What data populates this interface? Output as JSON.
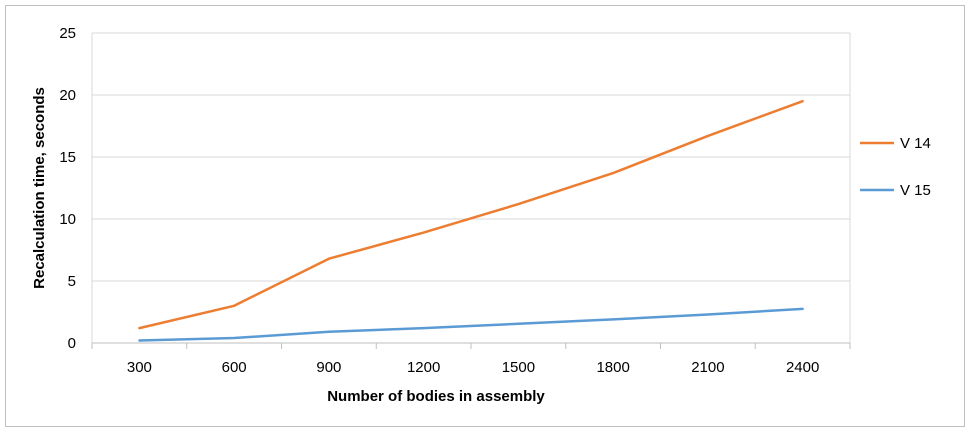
{
  "chart_data": {
    "type": "line",
    "title": "",
    "xlabel": "Number of bodies in assembly",
    "ylabel": "Recalculation time, seconds",
    "categories": [
      "300",
      "600",
      "900",
      "1200",
      "1500",
      "1800",
      "2100",
      "2400"
    ],
    "ylim": [
      0,
      25
    ],
    "yticks": [
      "0",
      "5",
      "10",
      "15",
      "20",
      "25"
    ],
    "grid": "horizontal",
    "legend_position": "right",
    "series": [
      {
        "name": "V 14",
        "color": "#ED7D31",
        "values": [
          1.2,
          3.0,
          6.8,
          8.9,
          11.2,
          13.7,
          16.7,
          19.5
        ]
      },
      {
        "name": "V 15",
        "color": "#5B9BD5",
        "values": [
          0.2,
          0.4,
          0.9,
          1.2,
          1.55,
          1.9,
          2.3,
          2.75
        ]
      }
    ]
  }
}
